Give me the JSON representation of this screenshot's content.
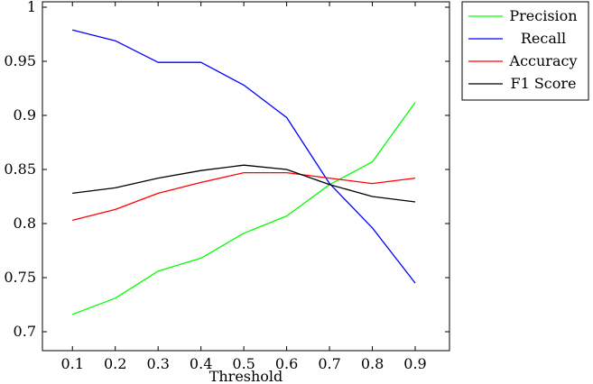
{
  "chart_data": {
    "type": "line",
    "xlabel": "Threshold",
    "ylabel": "",
    "x": [
      0.1,
      0.2,
      0.3,
      0.4,
      0.5,
      0.6,
      0.7,
      0.8,
      0.9
    ],
    "xticks": [
      "0.1",
      "0.2",
      "0.3",
      "0.4",
      "0.5",
      "0.6",
      "0.7",
      "0.8",
      "0.9"
    ],
    "xlim": [
      0.03,
      0.98
    ],
    "ylim": [
      0.7,
      1.0
    ],
    "yticks": [
      "0.7",
      "0.75",
      "0.8",
      "0.85",
      "0.9",
      "0.95",
      "1"
    ],
    "ytick_values": [
      0.7,
      0.75,
      0.8,
      0.85,
      0.9,
      0.95,
      1.0
    ],
    "grid": false,
    "legend": "outside-right-top",
    "series": [
      {
        "name": "Precision",
        "color": "#00ff00",
        "values": [
          0.716,
          0.731,
          0.756,
          0.768,
          0.791,
          0.807,
          0.836,
          0.857,
          0.912
        ]
      },
      {
        "name": "Recall",
        "color": "#0000ff",
        "values": [
          0.979,
          0.969,
          0.949,
          0.949,
          0.928,
          0.898,
          0.837,
          0.796,
          0.745
        ]
      },
      {
        "name": "Accuracy",
        "color": "#ff0000",
        "values": [
          0.803,
          0.813,
          0.828,
          0.838,
          0.847,
          0.847,
          0.842,
          0.837,
          0.842
        ]
      },
      {
        "name": "F1 Score",
        "color": "#000000",
        "values": [
          0.828,
          0.833,
          0.842,
          0.849,
          0.854,
          0.85,
          0.836,
          0.825,
          0.82
        ]
      }
    ]
  }
}
